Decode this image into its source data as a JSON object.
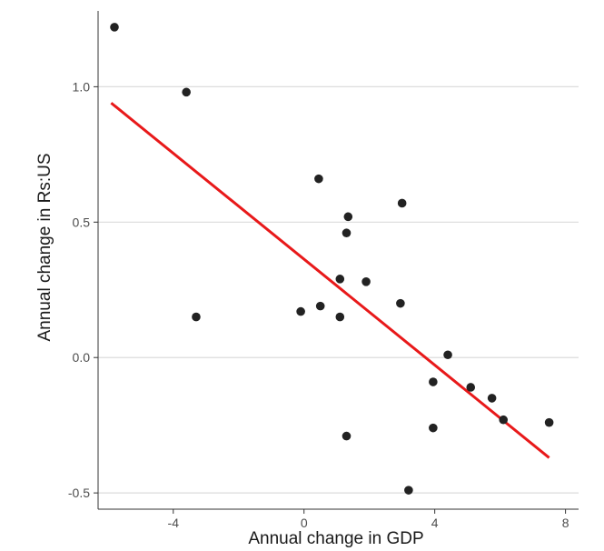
{
  "chart_data": {
    "type": "scatter",
    "title": "",
    "xlabel": "Annual change in GDP",
    "ylabel": "Annual change in Rs:US",
    "xlim": [
      -6.3,
      8.4
    ],
    "ylim": [
      -0.56,
      1.28
    ],
    "x_ticks": [
      -4,
      0,
      4,
      8
    ],
    "x_tick_labels": [
      "-4",
      "0",
      "4",
      "8"
    ],
    "y_ticks": [
      -0.5,
      0.0,
      0.5,
      1.0
    ],
    "y_tick_labels": [
      "-0.5",
      "0.0",
      "0.5",
      "1.0"
    ],
    "grid": "horizontal major",
    "legend": "none",
    "points": [
      {
        "x": -5.8,
        "y": 1.22
      },
      {
        "x": -3.6,
        "y": 0.98
      },
      {
        "x": -3.3,
        "y": 0.15
      },
      {
        "x": -0.1,
        "y": 0.17
      },
      {
        "x": 0.45,
        "y": 0.66
      },
      {
        "x": 0.5,
        "y": 0.19
      },
      {
        "x": 1.1,
        "y": 0.29
      },
      {
        "x": 1.1,
        "y": 0.15
      },
      {
        "x": 1.3,
        "y": 0.46
      },
      {
        "x": 1.35,
        "y": 0.52
      },
      {
        "x": 1.3,
        "y": -0.29
      },
      {
        "x": 1.9,
        "y": 0.28
      },
      {
        "x": 3.0,
        "y": 0.57
      },
      {
        "x": 2.95,
        "y": 0.2
      },
      {
        "x": 3.2,
        "y": -0.49
      },
      {
        "x": 3.95,
        "y": -0.09
      },
      {
        "x": 3.95,
        "y": -0.26
      },
      {
        "x": 4.4,
        "y": 0.01
      },
      {
        "x": 5.1,
        "y": -0.11
      },
      {
        "x": 5.75,
        "y": -0.15
      },
      {
        "x": 6.1,
        "y": -0.23
      },
      {
        "x": 7.5,
        "y": -0.24
      }
    ],
    "fit_line": {
      "x": [
        -5.9,
        7.5
      ],
      "y": [
        0.94,
        -0.37
      ]
    },
    "colors": {
      "points": "#222222",
      "fit_line": "#e8191a",
      "grid": "#dcdcdc",
      "axis": "#333333",
      "background": "#ffffff"
    }
  }
}
